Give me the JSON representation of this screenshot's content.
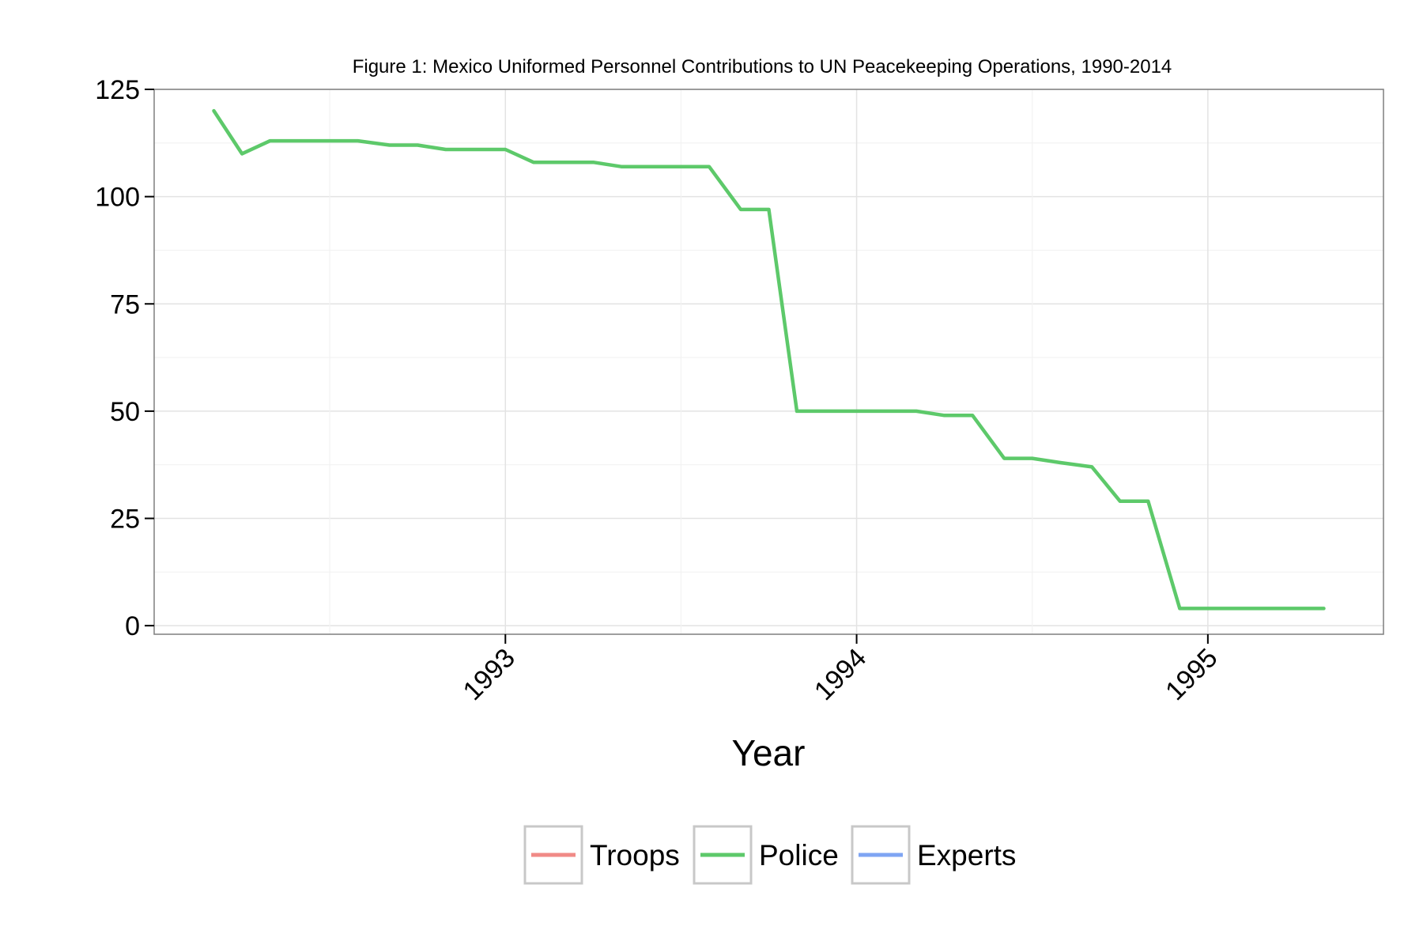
{
  "chart_data": {
    "type": "line",
    "title": "Figure 1: Mexico Uniformed Personnel Contributions to UN Peacekeeping Operations, 1990-2014",
    "xlabel": "Year",
    "ylabel": "",
    "xlim": [
      1992.0,
      1995.5
    ],
    "ylim": [
      -2,
      125
    ],
    "y_ticks": [
      0,
      25,
      50,
      75,
      100,
      125
    ],
    "x_ticks": [
      1993,
      1994,
      1995
    ],
    "grid": true,
    "legend_position": "bottom",
    "series": [
      {
        "name": "Troops",
        "color": "#f08a86",
        "x": [],
        "y": []
      },
      {
        "name": "Police",
        "color": "#5dc96a",
        "x": [
          1992.17,
          1992.25,
          1992.33,
          1992.42,
          1992.5,
          1992.58,
          1992.67,
          1992.75,
          1992.83,
          1992.92,
          1993.0,
          1993.08,
          1993.17,
          1993.25,
          1993.33,
          1993.42,
          1993.5,
          1993.58,
          1993.67,
          1993.75,
          1993.83,
          1993.92,
          1994.0,
          1994.08,
          1994.17,
          1994.25,
          1994.33,
          1994.42,
          1994.5,
          1994.58,
          1994.67,
          1994.75,
          1994.83,
          1994.92,
          1995.0,
          1995.08,
          1995.17,
          1995.25,
          1995.33
        ],
        "y": [
          120,
          110,
          113,
          113,
          113,
          113,
          112,
          112,
          111,
          111,
          111,
          108,
          108,
          108,
          107,
          107,
          107,
          107,
          97,
          97,
          50,
          50,
          50,
          50,
          50,
          49,
          49,
          39,
          39,
          38,
          37,
          29,
          29,
          4,
          4,
          4,
          4,
          4,
          4
        ]
      },
      {
        "name": "Experts",
        "color": "#7fa5f3",
        "x": [],
        "y": []
      }
    ]
  }
}
